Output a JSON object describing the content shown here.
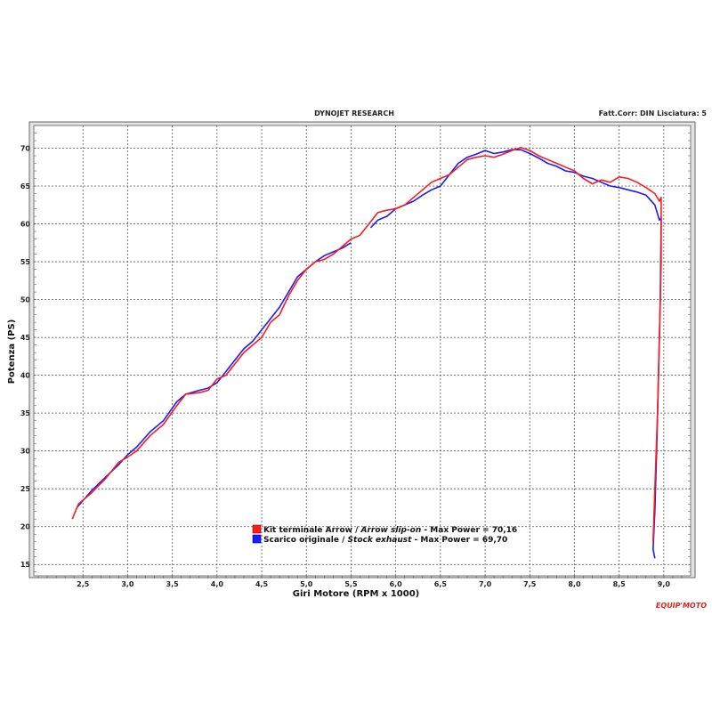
{
  "header": {
    "left": "DYNOJET RESEARCH",
    "right": "Fatt.Corr: DIN  Lisciatura: 5"
  },
  "watermark": "EQUIP'MOTO",
  "colors": {
    "arrow": "#ff1a1a",
    "stock": "#1a1aff",
    "grid": "#555555",
    "plot_bg": "#ffffff",
    "frame_bg": "#e4e4e4"
  },
  "chart_data": {
    "type": "line",
    "xlabel": "Giri Motore (RPM x 1000)",
    "ylabel": "Potenza (PS)",
    "xlim": [
      1.95,
      9.3
    ],
    "ylim": [
      13.5,
      73
    ],
    "x_ticks": [
      {
        "v": 2.5,
        "label": "2,5"
      },
      {
        "v": 3.0,
        "label": "3,0"
      },
      {
        "v": 3.5,
        "label": "3,5"
      },
      {
        "v": 4.0,
        "label": "4,0"
      },
      {
        "v": 4.5,
        "label": "4,5"
      },
      {
        "v": 5.0,
        "label": "5,0"
      },
      {
        "v": 5.5,
        "label": "5,5"
      },
      {
        "v": 6.0,
        "label": "6,0"
      },
      {
        "v": 6.5,
        "label": "6,5"
      },
      {
        "v": 7.0,
        "label": "7,0"
      },
      {
        "v": 7.5,
        "label": "7,5"
      },
      {
        "v": 8.0,
        "label": "8,0"
      },
      {
        "v": 8.5,
        "label": "8,5"
      },
      {
        "v": 9.0,
        "label": "9,0"
      }
    ],
    "y_ticks": [
      15,
      20,
      25,
      30,
      35,
      40,
      45,
      50,
      55,
      60,
      65,
      70
    ],
    "grid": true,
    "legend": {
      "placement": "bottom-center",
      "entries": [
        {
          "plain": "Kit terminale Arrow / ",
          "italic": "Arrow slip-on",
          "tail": " - Max Power = 70,16",
          "series": 0
        },
        {
          "plain": "Scarico originale / ",
          "italic": "Stock exhaust",
          "tail": " - Max Power = 69,70",
          "series": 1
        }
      ]
    },
    "series": [
      {
        "color": "#ff1a1a",
        "segments": [
          [
            [
              2.38,
              21.0
            ],
            [
              2.45,
              23.0
            ],
            [
              2.6,
              24.5
            ],
            [
              2.75,
              26.3
            ],
            [
              2.9,
              28.5
            ],
            [
              3.0,
              29.2
            ],
            [
              3.1,
              30.0
            ],
            [
              3.25,
              32.0
            ],
            [
              3.4,
              33.5
            ],
            [
              3.55,
              36.0
            ],
            [
              3.65,
              37.5
            ],
            [
              3.8,
              37.7
            ],
            [
              3.9,
              38.0
            ],
            [
              4.0,
              39.5
            ],
            [
              4.1,
              40.0
            ],
            [
              4.2,
              41.5
            ],
            [
              4.3,
              43.0
            ],
            [
              4.4,
              44.0
            ],
            [
              4.5,
              45.0
            ],
            [
              4.6,
              47.0
            ],
            [
              4.7,
              48.0
            ],
            [
              4.8,
              50.5
            ],
            [
              4.9,
              52.5
            ],
            [
              5.0,
              54.0
            ],
            [
              5.1,
              55.0
            ],
            [
              5.2,
              55.3
            ],
            [
              5.3,
              56.0
            ],
            [
              5.4,
              57.0
            ],
            [
              5.5,
              58.0
            ],
            [
              5.6,
              58.5
            ],
            [
              5.7,
              60.0
            ],
            [
              5.8,
              61.5
            ],
            [
              5.9,
              61.8
            ],
            [
              6.0,
              62.0
            ],
            [
              6.1,
              62.5
            ],
            [
              6.2,
              63.5
            ],
            [
              6.3,
              64.5
            ],
            [
              6.4,
              65.5
            ],
            [
              6.5,
              66.0
            ],
            [
              6.6,
              66.5
            ],
            [
              6.7,
              67.5
            ],
            [
              6.8,
              68.5
            ],
            [
              6.9,
              68.8
            ],
            [
              7.0,
              69.0
            ],
            [
              7.1,
              68.8
            ],
            [
              7.2,
              69.2
            ],
            [
              7.3,
              69.7
            ],
            [
              7.4,
              70.1
            ],
            [
              7.5,
              69.7
            ],
            [
              7.6,
              69.0
            ],
            [
              7.7,
              68.5
            ],
            [
              7.8,
              68.0
            ],
            [
              7.9,
              67.5
            ],
            [
              8.0,
              67.0
            ],
            [
              8.1,
              66.0
            ],
            [
              8.2,
              65.3
            ],
            [
              8.3,
              65.8
            ],
            [
              8.4,
              65.5
            ],
            [
              8.5,
              66.2
            ],
            [
              8.6,
              66.0
            ],
            [
              8.7,
              65.5
            ],
            [
              8.8,
              64.8
            ],
            [
              8.9,
              64.0
            ],
            [
              8.95,
              63.0
            ],
            [
              8.97,
              63.5
            ],
            [
              8.97,
              55.0
            ],
            [
              8.95,
              45.0
            ],
            [
              8.93,
              35.0
            ],
            [
              8.9,
              25.0
            ],
            [
              8.88,
              18.0
            ]
          ]
        ]
      },
      {
        "color": "#1a1aff",
        "segments": [
          [
            [
              2.43,
              22.5
            ],
            [
              2.6,
              24.8
            ],
            [
              2.75,
              26.5
            ],
            [
              2.9,
              28.2
            ],
            [
              3.0,
              29.5
            ],
            [
              3.1,
              30.5
            ],
            [
              3.25,
              32.5
            ],
            [
              3.4,
              34.0
            ],
            [
              3.55,
              36.5
            ],
            [
              3.65,
              37.5
            ],
            [
              3.8,
              38.0
            ],
            [
              3.9,
              38.3
            ],
            [
              4.0,
              39.0
            ],
            [
              4.1,
              40.5
            ],
            [
              4.2,
              42.0
            ],
            [
              4.3,
              43.5
            ],
            [
              4.4,
              44.5
            ],
            [
              4.5,
              46.0
            ],
            [
              4.6,
              47.5
            ],
            [
              4.7,
              49.0
            ],
            [
              4.8,
              51.0
            ],
            [
              4.9,
              53.0
            ],
            [
              5.0,
              54.0
            ],
            [
              5.1,
              55.0
            ],
            [
              5.2,
              55.8
            ],
            [
              5.3,
              56.3
            ],
            [
              5.4,
              56.8
            ],
            [
              5.5,
              57.5
            ]
          ],
          [
            [
              5.72,
              59.5
            ],
            [
              5.8,
              60.5
            ],
            [
              5.9,
              61.0
            ],
            [
              6.0,
              62.0
            ],
            [
              6.1,
              62.5
            ],
            [
              6.2,
              63.0
            ],
            [
              6.3,
              63.8
            ],
            [
              6.4,
              64.5
            ],
            [
              6.5,
              65.0
            ],
            [
              6.6,
              66.5
            ],
            [
              6.7,
              68.0
            ],
            [
              6.8,
              68.8
            ],
            [
              6.9,
              69.2
            ],
            [
              7.0,
              69.7
            ],
            [
              7.1,
              69.3
            ],
            [
              7.2,
              69.5
            ],
            [
              7.3,
              69.8
            ],
            [
              7.4,
              69.8
            ],
            [
              7.5,
              69.3
            ],
            [
              7.6,
              68.7
            ],
            [
              7.7,
              68.0
            ],
            [
              7.8,
              67.6
            ],
            [
              7.9,
              67.0
            ],
            [
              8.0,
              66.8
            ],
            [
              8.1,
              66.3
            ],
            [
              8.2,
              66.0
            ],
            [
              8.3,
              65.5
            ],
            [
              8.4,
              65.0
            ],
            [
              8.5,
              64.8
            ],
            [
              8.6,
              64.5
            ],
            [
              8.7,
              64.2
            ],
            [
              8.8,
              63.8
            ],
            [
              8.9,
              62.5
            ],
            [
              8.95,
              60.5
            ],
            [
              8.97,
              60.8
            ],
            [
              8.96,
              50.0
            ],
            [
              8.94,
              40.0
            ],
            [
              8.92,
              30.0
            ],
            [
              8.9,
              22.0
            ],
            [
              8.88,
              17.0
            ],
            [
              8.9,
              15.8
            ]
          ]
        ]
      }
    ]
  }
}
